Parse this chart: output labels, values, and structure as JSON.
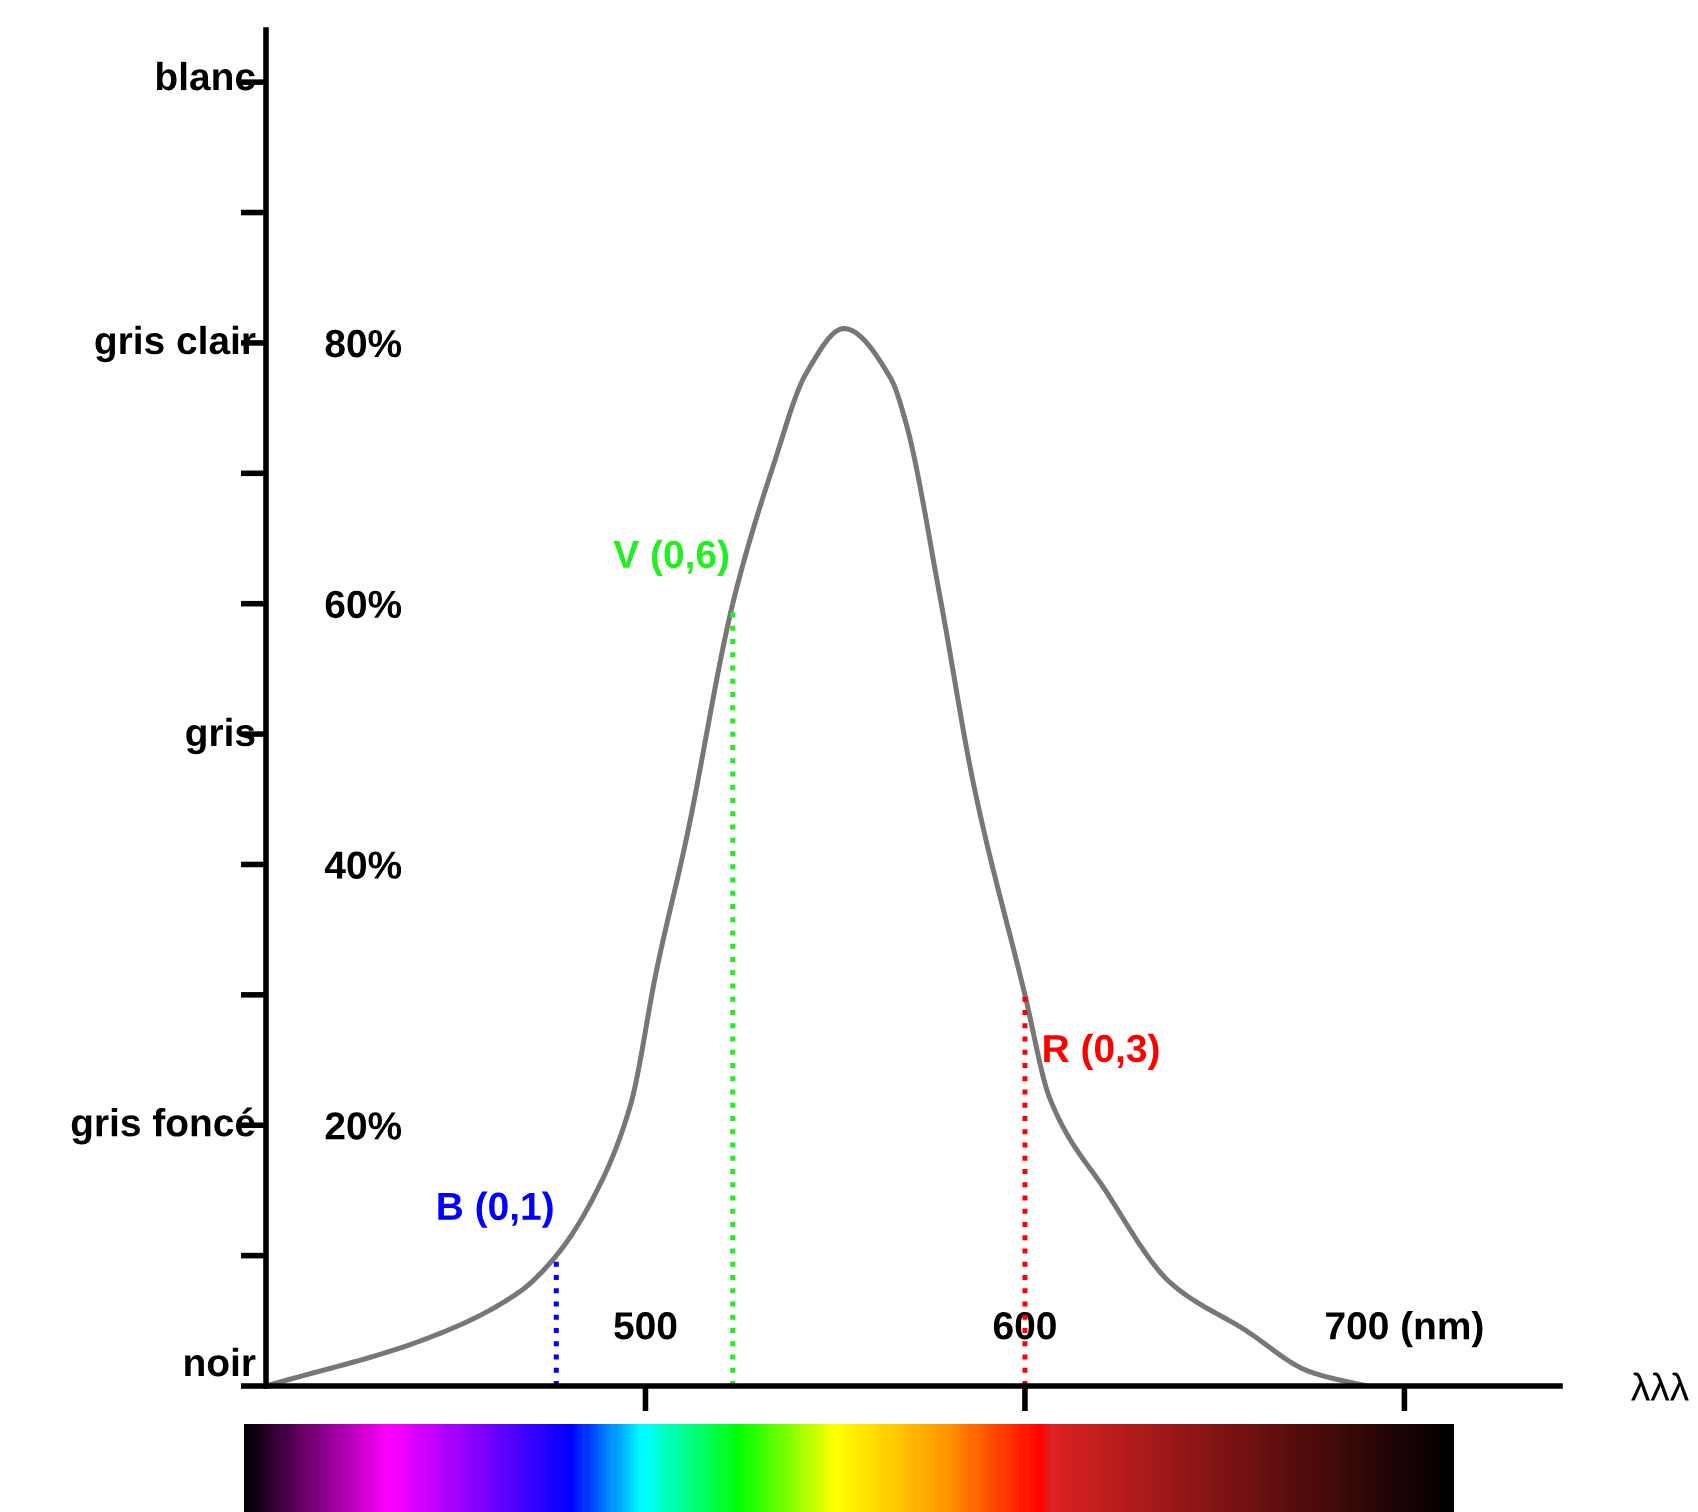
{
  "chart_data": {
    "type": "line",
    "xlabel": "λλλ",
    "series": [
      {
        "color": "#777777",
        "x": [
          400,
          442,
          466.7,
          476.5,
          486,
          496,
          503,
          510.8,
          523,
          533.8,
          542.4,
          552.3,
          564.6,
          568.8,
          577.7,
          586.5,
          600,
          606.5,
          621.2,
          638.4,
          658,
          675,
          690
        ],
        "values": [
          0,
          3.6,
          7.2,
          10,
          14.3,
          21.5,
          32,
          42,
          60,
          70.7,
          77.7,
          81.1,
          77.3,
          73.7,
          60.4,
          46.1,
          30,
          22.1,
          15,
          7.9,
          4.3,
          1.1,
          0
        ]
      }
    ],
    "xlim": [
      400,
      741
    ],
    "xticks": [
      500,
      600,
      {
        "value": 700,
        "label": "700 (nm)"
      }
    ],
    "ylim": [
      0,
      104
    ],
    "yticks": [
      {
        "value": 0,
        "label": null
      },
      {
        "value": 10,
        "label": null
      },
      {
        "value": 20,
        "label": "20%"
      },
      {
        "value": 30,
        "label": null
      },
      {
        "value": 40,
        "label": "40%"
      },
      {
        "value": 50,
        "label": null
      },
      {
        "value": 60,
        "label": "60%"
      },
      {
        "value": 70,
        "label": null
      },
      {
        "value": 80,
        "label": "80%"
      },
      {
        "value": 90,
        "label": null
      },
      {
        "value": 100,
        "label": null
      }
    ],
    "annotations": [
      "noir",
      "gris foncé",
      "gris",
      "gris clair",
      "blanc"
    ],
    "ref_lines": [
      {
        "axis": "x",
        "value": 476.5,
        "label": "B (0,1)",
        "color": "#0000ff",
        "line_style": "dotted"
      },
      {
        "axis": "x",
        "value": 523,
        "label": "V (0,6)",
        "color": "#22ee22",
        "line_style": "dotted"
      },
      {
        "axis": "x",
        "value": 600,
        "label": "R (0,3)",
        "color": "#ff0000",
        "line_style": "dotted"
      }
    ],
    "grid": false,
    "legend": false,
    "marker": "none",
    "line_style": "solid"
  }
}
